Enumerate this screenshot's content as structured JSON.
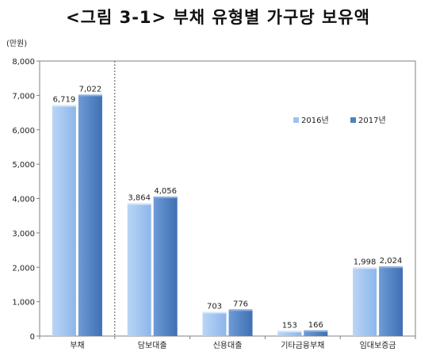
{
  "title": "<그림 3-1> 부채 유형별 가구당 보유액",
  "unit_label": "(만원)",
  "colors": {
    "series_2016": "#9DC3F0",
    "series_2017": "#4F81BD",
    "axis": "#808080",
    "divider": "#555555"
  },
  "chart_data": {
    "type": "bar",
    "title": "<그림 3-1> 부채 유형별 가구당 보유액",
    "ylabel": "(만원)",
    "xlabel": "",
    "ylim": [
      0,
      8000
    ],
    "yticks": [
      0,
      1000,
      2000,
      3000,
      4000,
      5000,
      6000,
      7000,
      8000
    ],
    "ytick_labels": [
      "0",
      "1,000",
      "2,000",
      "3,000",
      "4,000",
      "5,000",
      "6,000",
      "7,000",
      "8,000"
    ],
    "categories": [
      "부채",
      "담보대출",
      "신용대출",
      "기타금융부채",
      "임대보증금"
    ],
    "series": [
      {
        "name": "2016년",
        "values": [
          6719,
          3864,
          703,
          153,
          1998
        ],
        "labels": [
          "6,719",
          "3,864",
          "703",
          "153",
          "1,998"
        ]
      },
      {
        "name": "2017년",
        "values": [
          7022,
          4056,
          776,
          166,
          2024
        ],
        "labels": [
          "7,022",
          "4,056",
          "776",
          "166",
          "2,024"
        ]
      }
    ],
    "grid": false,
    "legend": "right, inside plot"
  }
}
